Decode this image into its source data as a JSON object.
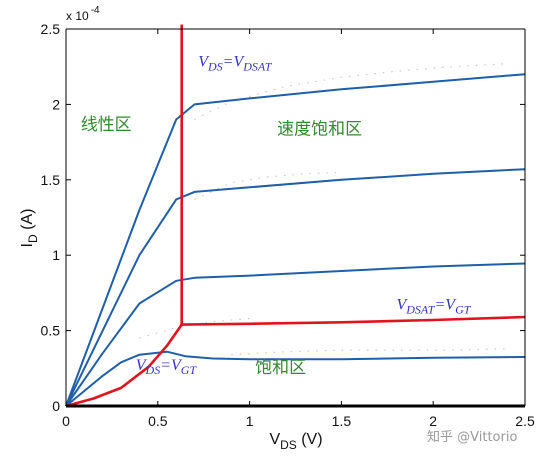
{
  "chart_data": {
    "type": "line",
    "title": "",
    "xlabel": {
      "main": "V",
      "sub": "DS",
      "unit": "(V)"
    },
    "ylabel": {
      "main": "I",
      "sub": "D",
      "unit": "(A)"
    },
    "y_exponent_label": {
      "base": "x 10",
      "exp": "-4"
    },
    "xlim": [
      0,
      2.5
    ],
    "ylim": [
      0,
      2.5
    ],
    "y_scale_multiplier": 0.0001,
    "xticks": [
      "0",
      "0.5",
      "1",
      "1.5",
      "2",
      "2.5"
    ],
    "yticks": [
      "0",
      "0.5",
      "1",
      "1.5",
      "2",
      "2.5"
    ],
    "grid": false,
    "series": [
      {
        "color": "#1f5fa8",
        "points": [
          [
            0,
            0
          ],
          [
            0.1,
            0.1
          ],
          [
            0.2,
            0.2
          ],
          [
            0.3,
            0.29
          ],
          [
            0.4,
            0.34
          ],
          [
            0.55,
            0.36
          ],
          [
            0.65,
            0.33
          ],
          [
            0.8,
            0.315
          ],
          [
            1.0,
            0.31
          ],
          [
            1.5,
            0.31
          ],
          [
            2.0,
            0.32
          ],
          [
            2.5,
            0.325
          ]
        ]
      },
      {
        "color": "#1f5fa8",
        "points": [
          [
            0,
            0
          ],
          [
            0.2,
            0.35
          ],
          [
            0.4,
            0.68
          ],
          [
            0.6,
            0.83
          ],
          [
            0.7,
            0.85
          ],
          [
            1.0,
            0.865
          ],
          [
            1.5,
            0.895
          ],
          [
            2.0,
            0.925
          ],
          [
            2.5,
            0.945
          ]
        ]
      },
      {
        "color": "#1f5fa8",
        "points": [
          [
            0,
            0
          ],
          [
            0.2,
            0.5
          ],
          [
            0.4,
            1.0
          ],
          [
            0.6,
            1.37
          ],
          [
            0.7,
            1.42
          ],
          [
            1.0,
            1.45
          ],
          [
            1.5,
            1.5
          ],
          [
            2.0,
            1.54
          ],
          [
            2.5,
            1.57
          ]
        ]
      },
      {
        "color": "#1f5fa8",
        "points": [
          [
            0,
            0
          ],
          [
            0.2,
            0.65
          ],
          [
            0.4,
            1.3
          ],
          [
            0.6,
            1.9
          ],
          [
            0.7,
            2.0
          ],
          [
            1.0,
            2.04
          ],
          [
            1.5,
            2.1
          ],
          [
            2.0,
            2.15
          ],
          [
            2.5,
            2.2
          ]
        ]
      }
    ],
    "red_lines": [
      {
        "name": "vdsat-vertical",
        "points": [
          [
            0.63,
            2.53
          ],
          [
            0.63,
            0.53
          ]
        ]
      },
      {
        "name": "vdsat-vgt",
        "points": [
          [
            0.63,
            0.54
          ],
          [
            1.0,
            0.545
          ],
          [
            1.5,
            0.555
          ],
          [
            2.0,
            0.57
          ],
          [
            2.5,
            0.59
          ]
        ]
      },
      {
        "name": "vds-vgt",
        "points": [
          [
            0,
            0
          ],
          [
            0.15,
            0.05
          ],
          [
            0.3,
            0.12
          ],
          [
            0.45,
            0.26
          ],
          [
            0.55,
            0.4
          ],
          [
            0.63,
            0.54
          ]
        ]
      }
    ],
    "dotted_curves": [
      {
        "points": [
          [
            0.7,
            1.37
          ],
          [
            0.9,
            1.48
          ],
          [
            1.1,
            1.52
          ],
          [
            1.3,
            1.54
          ],
          [
            1.5,
            1.55
          ]
        ]
      },
      {
        "points": [
          [
            0.7,
            1.9
          ],
          [
            0.9,
            2.02
          ],
          [
            1.2,
            2.12
          ],
          [
            1.5,
            2.18
          ],
          [
            1.8,
            2.22
          ],
          [
            2.1,
            2.25
          ],
          [
            2.4,
            2.27
          ]
        ]
      },
      {
        "points": [
          [
            0.4,
            0.45
          ],
          [
            0.6,
            0.52
          ],
          [
            0.8,
            0.56
          ],
          [
            1.0,
            0.58
          ]
        ]
      },
      {
        "points": [
          [
            0.9,
            0.34
          ],
          [
            1.2,
            0.36
          ],
          [
            1.5,
            0.37
          ],
          [
            1.8,
            0.37
          ],
          [
            2.1,
            0.37
          ],
          [
            2.4,
            0.38
          ]
        ]
      }
    ],
    "annotations": [
      {
        "name": "linear-region",
        "text": "线性区",
        "x": 0.08,
        "y": 1.83,
        "color": "#2e8b2e"
      },
      {
        "name": "velocity-saturation-region",
        "text": "速度饱和区",
        "x": 1.15,
        "y": 1.8,
        "color": "#2e8b2e"
      },
      {
        "name": "saturation-region",
        "text": "饱和区",
        "x": 1.03,
        "y": 0.22,
        "color": "#2e8b2e"
      },
      {
        "name": "vds-vdsat-label",
        "parts": [
          [
            "V",
            ""
          ],
          [
            "DS",
            "sub"
          ],
          [
            "=V",
            ""
          ],
          [
            "DSAT",
            "sub"
          ]
        ],
        "x": 0.72,
        "y": 2.25,
        "color": "#3333cc"
      },
      {
        "name": "vdsat-vgt-label",
        "parts": [
          [
            "V",
            ""
          ],
          [
            "DSAT",
            "sub"
          ],
          [
            "=V",
            ""
          ],
          [
            "GT",
            "sub"
          ]
        ],
        "x": 1.8,
        "y": 0.64,
        "color": "#3333cc"
      },
      {
        "name": "vds-vgt-label",
        "parts": [
          [
            "V",
            ""
          ],
          [
            "DS",
            "sub"
          ],
          [
            "=V",
            ""
          ],
          [
            "GT",
            "sub"
          ]
        ],
        "x": 0.38,
        "y": 0.24,
        "color": "#3333cc"
      }
    ]
  },
  "watermark": "知乎 @Vittorio"
}
